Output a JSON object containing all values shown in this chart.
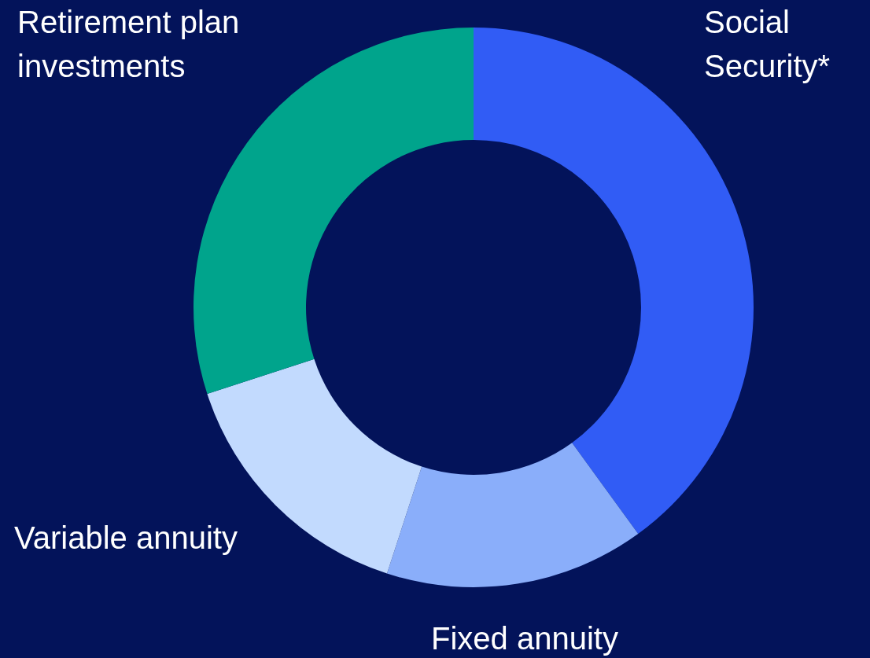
{
  "chart_data": {
    "type": "donut",
    "categories": [
      "Social Security*",
      "Fixed annuity",
      "Variable annuity",
      "Retirement plan investments"
    ],
    "values": [
      40,
      15,
      15,
      30
    ],
    "colors": [
      "#315cf5",
      "#8aaefa",
      "#c2dafe",
      "#00a48c"
    ]
  }
}
